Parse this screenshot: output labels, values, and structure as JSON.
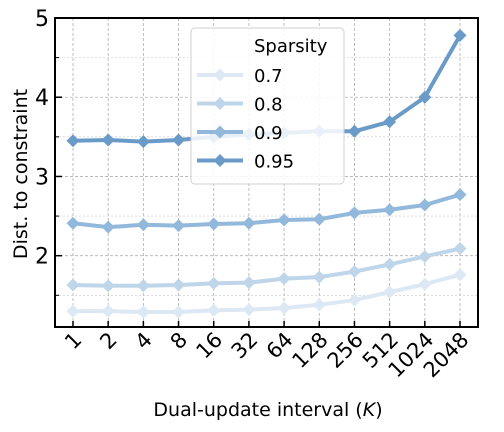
{
  "chart_data": {
    "type": "line",
    "title": "",
    "xlabel": "Dual-update interval (",
    "xlabel_var": "K",
    "xlabel_close": ")",
    "ylabel": "Dist. to constraint",
    "categories": [
      "1",
      "2",
      "4",
      "8",
      "16",
      "32",
      "64",
      "128",
      "256",
      "512",
      "1024",
      "2048"
    ],
    "ylim": [
      1.1,
      5.0
    ],
    "yticks": [
      "2",
      "3",
      "4",
      "5"
    ],
    "grid": true,
    "legend": {
      "title": "Sparsity",
      "placement": "top-center"
    },
    "series": [
      {
        "name": "0.7",
        "color": "#dce8f4",
        "values": [
          1.3,
          1.3,
          1.29,
          1.29,
          1.31,
          1.32,
          1.34,
          1.38,
          1.44,
          1.54,
          1.64,
          1.76
        ]
      },
      {
        "name": "0.8",
        "color": "#bfd5ea",
        "values": [
          1.63,
          1.62,
          1.62,
          1.63,
          1.65,
          1.66,
          1.71,
          1.73,
          1.8,
          1.89,
          1.99,
          2.09
        ]
      },
      {
        "name": "0.9",
        "color": "#92b8db",
        "values": [
          2.41,
          2.36,
          2.39,
          2.38,
          2.4,
          2.41,
          2.45,
          2.46,
          2.54,
          2.58,
          2.64,
          2.77
        ]
      },
      {
        "name": "0.95",
        "color": "#6a9bc8",
        "values": [
          3.45,
          3.46,
          3.44,
          3.46,
          3.5,
          3.53,
          3.55,
          3.57,
          3.57,
          3.69,
          4.0,
          4.78
        ]
      }
    ]
  }
}
